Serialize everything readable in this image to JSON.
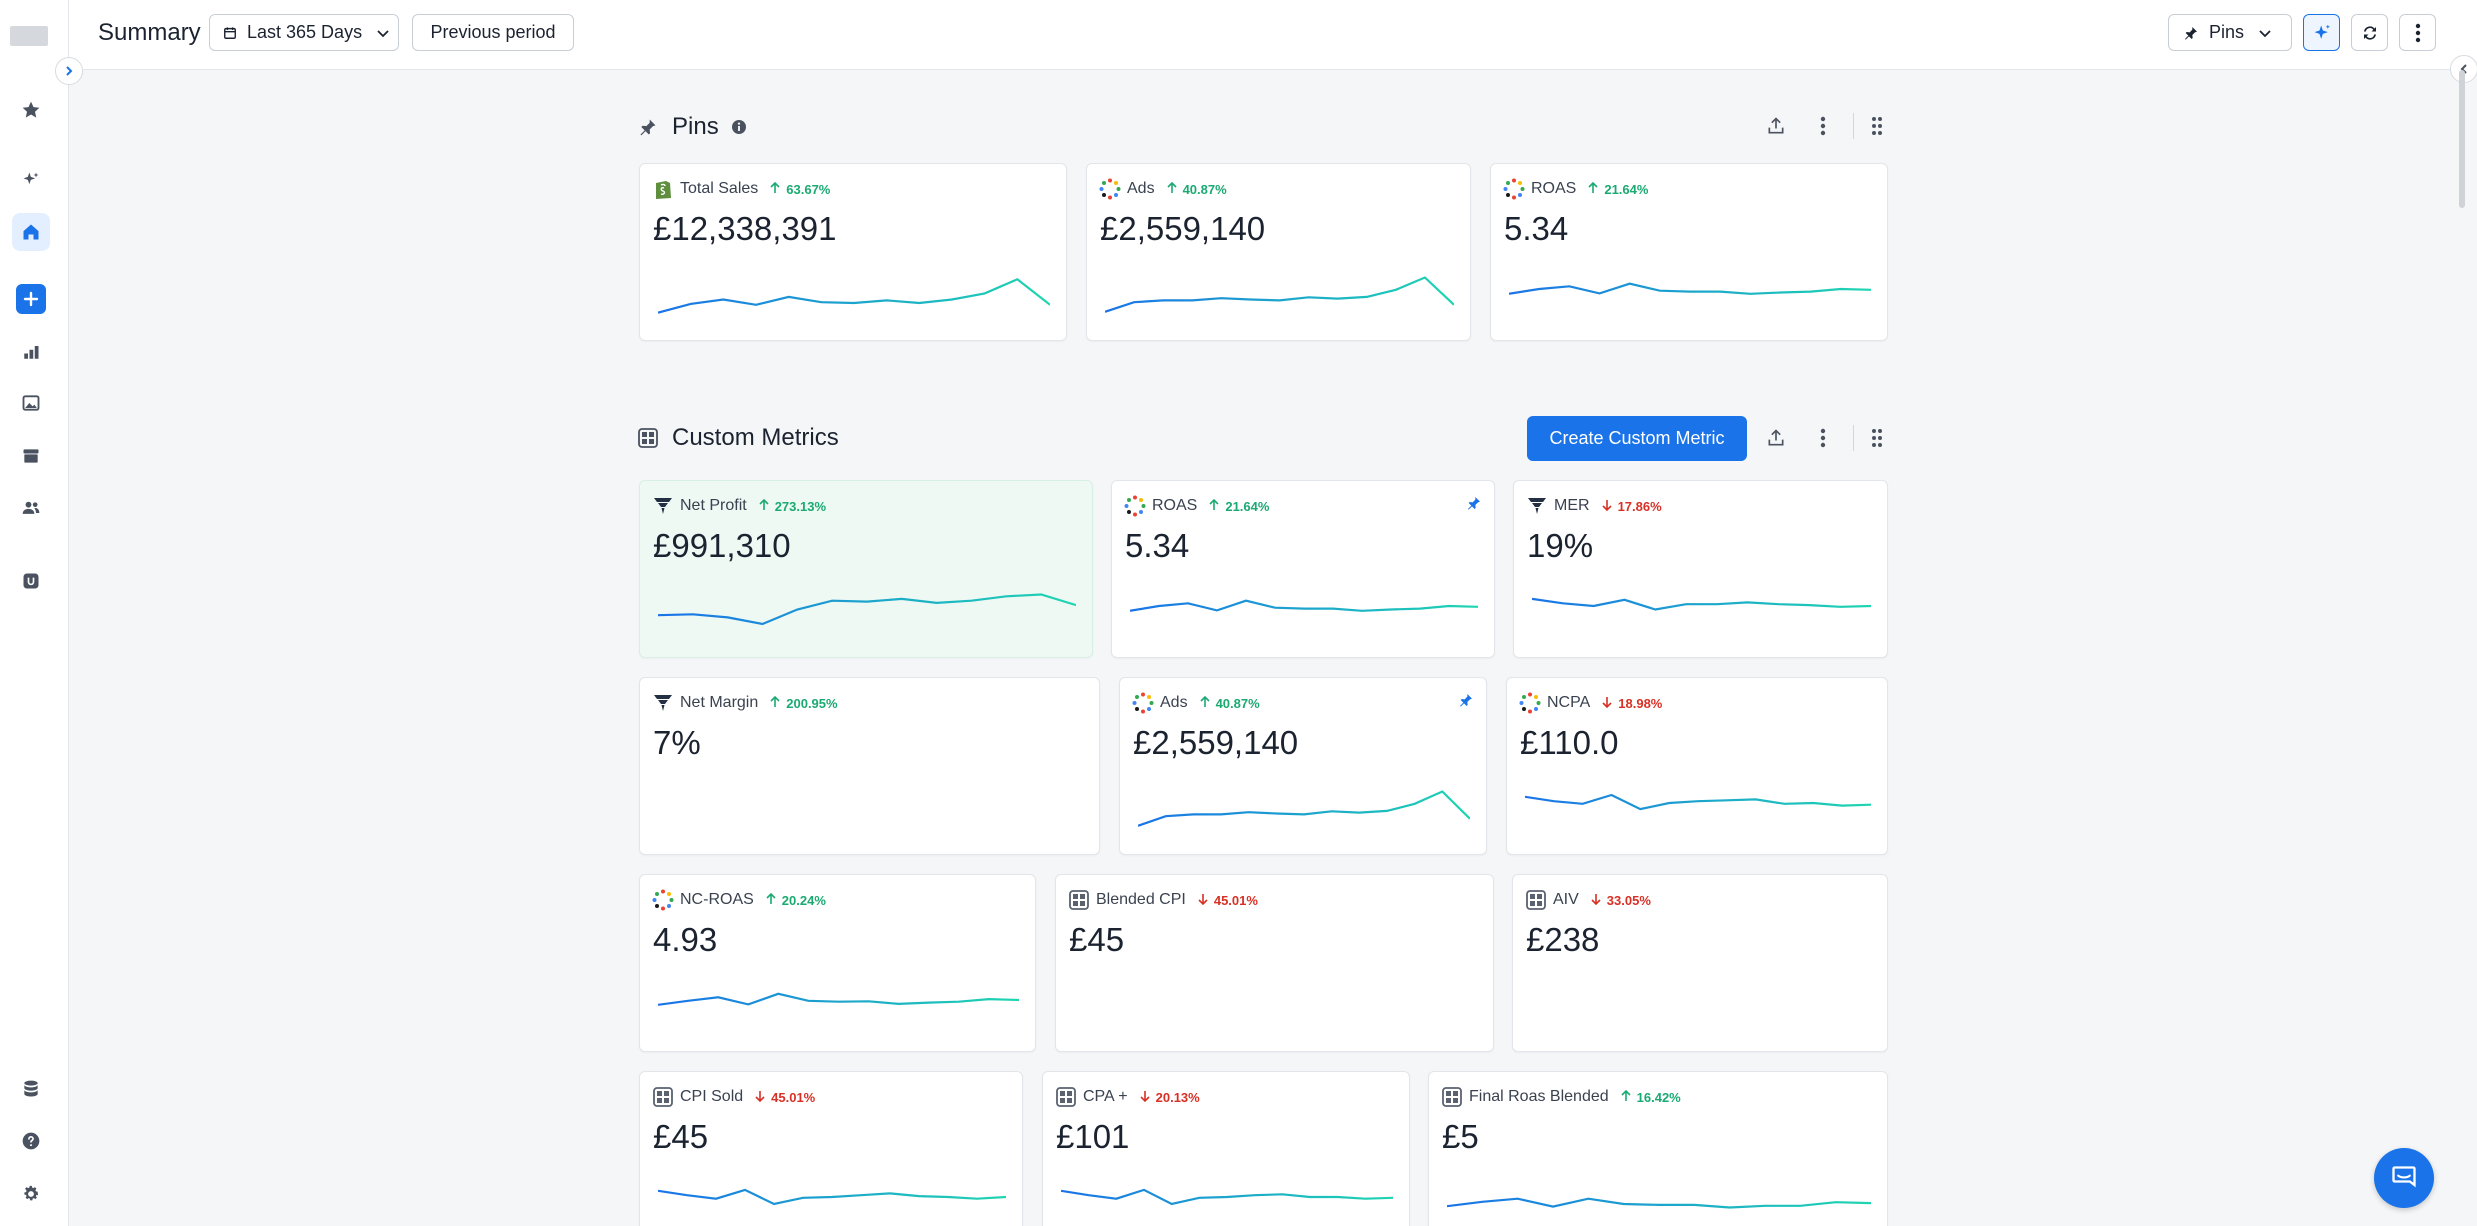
{
  "header": {
    "title": "Summary",
    "date_range": "Last 365 Days",
    "compare": "Previous period",
    "pins_dropdown": "Pins"
  },
  "colors": {
    "accent": "#1a73e8",
    "up": "#1aaa72",
    "down": "#d93025",
    "spark_teal": "#1ed6b0",
    "spark_blue": "#1a73e8"
  },
  "pins_section": {
    "title": "Pins",
    "cards": [
      {
        "title": "Total Sales",
        "delta": "63.67%",
        "dir": "up",
        "value": "£12,338,391",
        "icon": "shopify-icon",
        "spark": [
          0.12,
          0.32,
          0.42,
          0.3,
          0.48,
          0.36,
          0.34,
          0.4,
          0.34,
          0.42,
          0.56,
          0.88,
          0.3
        ]
      },
      {
        "title": "Ads",
        "delta": "40.87%",
        "dir": "up",
        "value": "£2,559,140",
        "icon": "ads-dots-icon",
        "spark": [
          0.14,
          0.36,
          0.4,
          0.4,
          0.45,
          0.42,
          0.4,
          0.47,
          0.44,
          0.48,
          0.64,
          0.92,
          0.3
        ]
      },
      {
        "title": "ROAS",
        "delta": "21.64%",
        "dir": "up",
        "value": "5.34",
        "icon": "ads-dots-icon",
        "spark": [
          0.55,
          0.66,
          0.72,
          0.56,
          0.78,
          0.62,
          0.6,
          0.6,
          0.55,
          0.58,
          0.6,
          0.66,
          0.64
        ]
      }
    ]
  },
  "custom_section": {
    "title": "Custom Metrics",
    "create_label": "Create Custom Metric",
    "rows": [
      [
        {
          "title": "Net Profit",
          "delta": "273.13%",
          "dir": "up",
          "value": "£991,310",
          "icon": "funnel-icon",
          "highlight": true,
          "spark": [
            0.45,
            0.47,
            0.4,
            0.25,
            0.58,
            0.78,
            0.76,
            0.82,
            0.73,
            0.78,
            0.88,
            0.92,
            0.68
          ]
        },
        {
          "title": "ROAS",
          "delta": "21.64%",
          "dir": "up",
          "value": "5.34",
          "icon": "ads-dots-icon",
          "pinned": true,
          "spark": [
            0.55,
            0.66,
            0.72,
            0.56,
            0.78,
            0.62,
            0.6,
            0.6,
            0.55,
            0.58,
            0.6,
            0.66,
            0.64
          ]
        },
        {
          "title": "MER",
          "delta": "17.86%",
          "dir": "down",
          "value": "19%",
          "icon": "funnel-icon",
          "spark": [
            0.82,
            0.72,
            0.66,
            0.8,
            0.58,
            0.7,
            0.7,
            0.74,
            0.7,
            0.68,
            0.64,
            0.66
          ]
        }
      ],
      [
        {
          "title": "Net Margin",
          "delta": "200.95%",
          "dir": "up",
          "value": "7%",
          "icon": "funnel-icon"
        },
        {
          "title": "Ads",
          "delta": "40.87%",
          "dir": "up",
          "value": "£2,559,140",
          "icon": "ads-dots-icon",
          "pinned": true,
          "spark": [
            0.14,
            0.36,
            0.4,
            0.4,
            0.45,
            0.42,
            0.4,
            0.47,
            0.44,
            0.48,
            0.64,
            0.92,
            0.3
          ]
        },
        {
          "title": "NCPA",
          "delta": "18.98%",
          "dir": "down",
          "value": "£110.0",
          "icon": "ads-dots-icon",
          "spark": [
            0.8,
            0.7,
            0.64,
            0.84,
            0.52,
            0.66,
            0.7,
            0.72,
            0.74,
            0.64,
            0.66,
            0.6,
            0.62
          ]
        }
      ],
      [
        {
          "title": "NC-ROAS",
          "delta": "20.24%",
          "dir": "up",
          "value": "4.93",
          "icon": "ads-dots-icon",
          "spark": [
            0.55,
            0.64,
            0.72,
            0.56,
            0.8,
            0.64,
            0.62,
            0.63,
            0.57,
            0.6,
            0.62,
            0.68,
            0.66
          ]
        },
        {
          "title": "Blended CPI",
          "delta": "45.01%",
          "dir": "down",
          "value": "£45",
          "icon": "grid-metric-icon"
        },
        {
          "title": "AIV",
          "delta": "33.05%",
          "dir": "down",
          "value": "£238",
          "icon": "grid-metric-icon"
        }
      ],
      [
        {
          "title": "CPI Sold",
          "delta": "45.01%",
          "dir": "down",
          "value": "£45",
          "icon": "grid-metric-icon",
          "spark": [
            0.8,
            0.7,
            0.62,
            0.82,
            0.5,
            0.64,
            0.66,
            0.7,
            0.74,
            0.68,
            0.66,
            0.62,
            0.66
          ]
        },
        {
          "title": "CPA +",
          "delta": "20.13%",
          "dir": "down",
          "value": "£101",
          "icon": "grid-metric-icon",
          "spark": [
            0.8,
            0.7,
            0.62,
            0.82,
            0.5,
            0.64,
            0.66,
            0.7,
            0.72,
            0.66,
            0.66,
            0.62,
            0.64
          ]
        },
        {
          "title": "Final Roas Blended",
          "delta": "16.42%",
          "dir": "up",
          "value": "£5",
          "icon": "grid-metric-icon",
          "spark": [
            0.45,
            0.55,
            0.62,
            0.44,
            0.62,
            0.5,
            0.48,
            0.48,
            0.42,
            0.46,
            0.46,
            0.54,
            0.52
          ]
        }
      ]
    ]
  }
}
